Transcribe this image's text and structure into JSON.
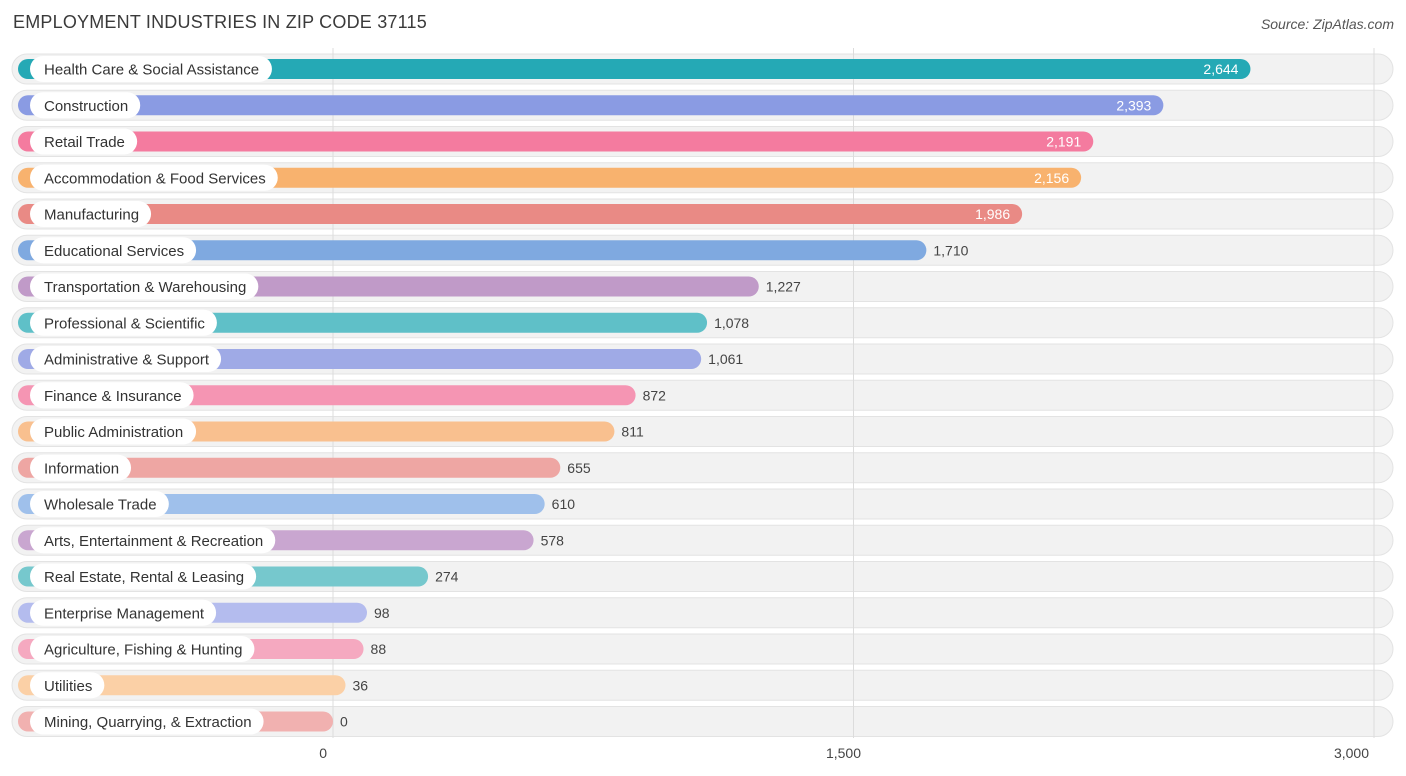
{
  "header": {
    "title": "EMPLOYMENT INDUSTRIES IN ZIP CODE 37115",
    "source": "Source: ZipAtlas.com"
  },
  "chart_data": {
    "type": "bar",
    "orientation": "horizontal",
    "title": "EMPLOYMENT INDUSTRIES IN ZIP CODE 37115",
    "xlabel": "",
    "ylabel": "",
    "xlim": [
      0,
      3000
    ],
    "ticks": [
      0,
      1500,
      3000
    ],
    "tick_labels": [
      "0",
      "1,500",
      "3,000"
    ],
    "grid": true,
    "categories": [
      "Health Care & Social Assistance",
      "Construction",
      "Retail Trade",
      "Accommodation & Food Services",
      "Manufacturing",
      "Educational Services",
      "Transportation & Warehousing",
      "Professional & Scientific",
      "Administrative & Support",
      "Finance & Insurance",
      "Public Administration",
      "Information",
      "Wholesale Trade",
      "Arts, Entertainment & Recreation",
      "Real Estate, Rental & Leasing",
      "Enterprise Management",
      "Agriculture, Fishing & Hunting",
      "Utilities",
      "Mining, Quarrying, & Extraction"
    ],
    "values": [
      2644,
      2393,
      2191,
      2156,
      1986,
      1710,
      1227,
      1078,
      1061,
      872,
      811,
      655,
      610,
      578,
      274,
      98,
      88,
      36,
      0
    ],
    "value_labels": [
      "2,644",
      "2,393",
      "2,191",
      "2,156",
      "1,986",
      "1,710",
      "1,227",
      "1,078",
      "1,061",
      "872",
      "811",
      "655",
      "610",
      "578",
      "274",
      "98",
      "88",
      "36",
      "0"
    ],
    "colors": [
      "#25a9b5",
      "#8a9be3",
      "#f47b9f",
      "#f8b26e",
      "#e98a85",
      "#7fa9e0",
      "#c09ac8",
      "#5fc0c8",
      "#9faae6",
      "#f595b3",
      "#f9c08f",
      "#eea6a3",
      "#9fc0eb",
      "#c9a6d0",
      "#76c8cd",
      "#b4bcee",
      "#f5a9c0",
      "#fbd0a6",
      "#f1b1b0"
    ]
  }
}
